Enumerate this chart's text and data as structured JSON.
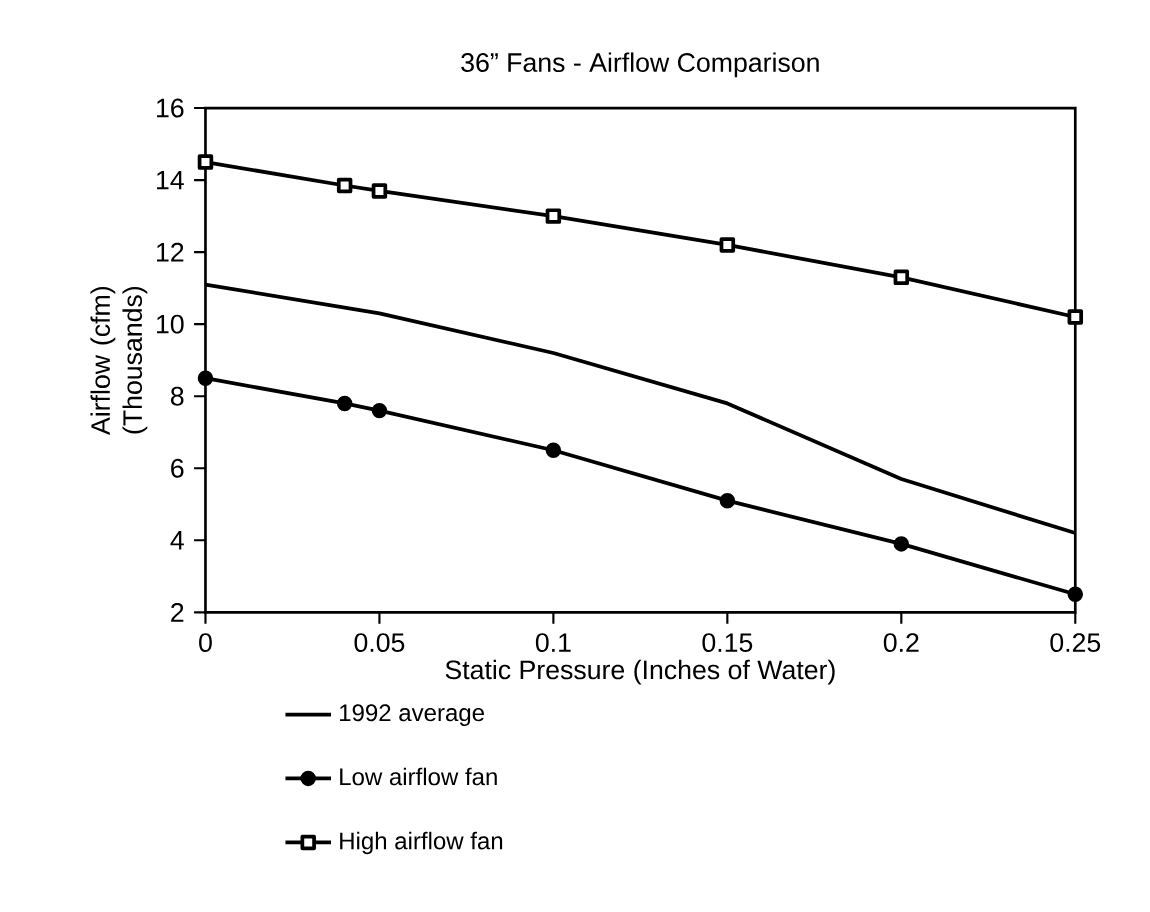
{
  "chart_data": {
    "type": "line",
    "title": "36” Fans - Airflow Comparison",
    "xlabel": "Static Pressure (Inches of Water)",
    "ylabel": "Airflow (cfm) (Thousands)",
    "xlim": [
      0,
      0.25
    ],
    "xticks": [
      0,
      0.05,
      0.1,
      0.15,
      0.2,
      0.25
    ],
    "ylim": [
      2,
      16
    ],
    "yticks": [
      2,
      4,
      6,
      8,
      10,
      12,
      14,
      16
    ],
    "grid": false,
    "legend": "bottom",
    "series": [
      {
        "name": "1992 average",
        "color": "#000000",
        "marker": "none",
        "x": [
          0,
          0.05,
          0.1,
          0.15,
          0.2,
          0.25
        ],
        "values": [
          11.1,
          10.3,
          9.2,
          7.8,
          5.7,
          4.2
        ]
      },
      {
        "name": "Low airflow fan",
        "color": "#000000",
        "marker": "circle",
        "x": [
          0,
          0.04,
          0.05,
          0.1,
          0.15,
          0.2,
          0.25
        ],
        "values": [
          8.5,
          7.8,
          7.6,
          6.5,
          5.1,
          3.9,
          2.5
        ]
      },
      {
        "name": "High airflow fan",
        "color": "#000000",
        "marker": "square",
        "x": [
          0,
          0.04,
          0.05,
          0.1,
          0.15,
          0.2,
          0.25
        ],
        "values": [
          14.5,
          13.85,
          13.7,
          13.0,
          12.2,
          11.3,
          10.2
        ]
      }
    ]
  }
}
